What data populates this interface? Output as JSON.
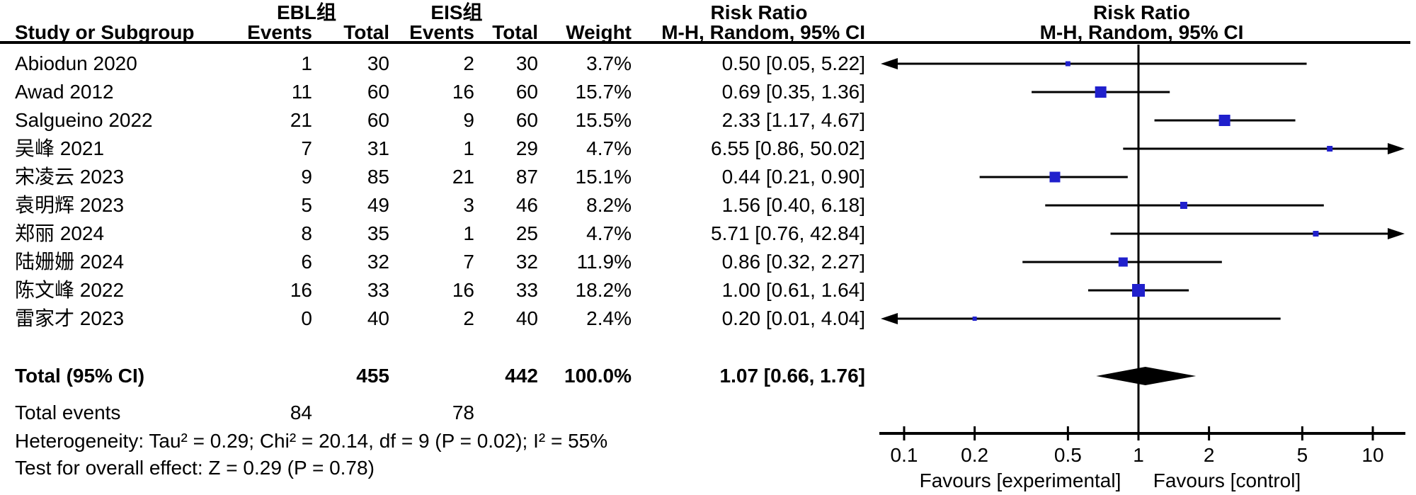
{
  "header": {
    "group1": "EBL组",
    "group2": "EIS组",
    "risk_ratio_text_col": "Risk Ratio",
    "risk_ratio_plot_col": "Risk Ratio",
    "col_study": "Study or Subgroup",
    "col_events1": "Events",
    "col_total1": "Total",
    "col_events2": "Events",
    "col_total2": "Total",
    "col_weight": "Weight",
    "col_mh_text": "M-H, Random, 95% CI",
    "col_mh_plot": "M-H, Random, 95% CI"
  },
  "chart_data": {
    "type": "forest",
    "effect_measure": "Risk Ratio",
    "method": "M-H, Random, 95% CI",
    "x_scale": "log10",
    "xlim": [
      0.1,
      10
    ],
    "x_ticks": [
      0.1,
      0.2,
      0.5,
      1,
      2,
      5,
      10
    ],
    "x_tick_labels": [
      "0.1",
      "0.2",
      "0.5",
      "1",
      "2",
      "5",
      "10"
    ],
    "favours_left": "Favours [experimental]",
    "favours_right": "Favours [control]",
    "studies": [
      {
        "name": "Abiodun 2020",
        "e1": "1",
        "t1": "30",
        "e2": "2",
        "t2": "30",
        "weight": "3.7%",
        "ci_text": "0.50 [0.05, 5.22]",
        "est": 0.5,
        "lo": 0.05,
        "hi": 5.22,
        "weight_pct": 3.7
      },
      {
        "name": "Awad 2012",
        "e1": "11",
        "t1": "60",
        "e2": "16",
        "t2": "60",
        "weight": "15.7%",
        "ci_text": "0.69 [0.35, 1.36]",
        "est": 0.69,
        "lo": 0.35,
        "hi": 1.36,
        "weight_pct": 15.7
      },
      {
        "name": "Salgueino 2022",
        "e1": "21",
        "t1": "60",
        "e2": "9",
        "t2": "60",
        "weight": "15.5%",
        "ci_text": "2.33 [1.17, 4.67]",
        "est": 2.33,
        "lo": 1.17,
        "hi": 4.67,
        "weight_pct": 15.5
      },
      {
        "name": "吴峰 2021",
        "e1": "7",
        "t1": "31",
        "e2": "1",
        "t2": "29",
        "weight": "4.7%",
        "ci_text": "6.55 [0.86, 50.02]",
        "est": 6.55,
        "lo": 0.86,
        "hi": 50.02,
        "weight_pct": 4.7
      },
      {
        "name": "宋凌云 2023",
        "e1": "9",
        "t1": "85",
        "e2": "21",
        "t2": "87",
        "weight": "15.1%",
        "ci_text": "0.44 [0.21, 0.90]",
        "est": 0.44,
        "lo": 0.21,
        "hi": 0.9,
        "weight_pct": 15.1
      },
      {
        "name": "袁明辉 2023",
        "e1": "5",
        "t1": "49",
        "e2": "3",
        "t2": "46",
        "weight": "8.2%",
        "ci_text": "1.56 [0.40, 6.18]",
        "est": 1.56,
        "lo": 0.4,
        "hi": 6.18,
        "weight_pct": 8.2
      },
      {
        "name": "郑丽 2024",
        "e1": "8",
        "t1": "35",
        "e2": "1",
        "t2": "25",
        "weight": "4.7%",
        "ci_text": "5.71 [0.76, 42.84]",
        "est": 5.71,
        "lo": 0.76,
        "hi": 42.84,
        "weight_pct": 4.7
      },
      {
        "name": "陆姗姗 2024",
        "e1": "6",
        "t1": "32",
        "e2": "7",
        "t2": "32",
        "weight": "11.9%",
        "ci_text": "0.86 [0.32, 2.27]",
        "est": 0.86,
        "lo": 0.32,
        "hi": 2.27,
        "weight_pct": 11.9
      },
      {
        "name": "陈文峰 2022",
        "e1": "16",
        "t1": "33",
        "e2": "16",
        "t2": "33",
        "weight": "18.2%",
        "ci_text": "1.00 [0.61, 1.64]",
        "est": 1.0,
        "lo": 0.61,
        "hi": 1.64,
        "weight_pct": 18.2
      },
      {
        "name": "雷家才 2023",
        "e1": "0",
        "t1": "40",
        "e2": "2",
        "t2": "40",
        "weight": "2.4%",
        "ci_text": "0.20 [0.01, 4.04]",
        "est": 0.2,
        "lo": 0.01,
        "hi": 4.04,
        "weight_pct": 2.4
      }
    ],
    "total": {
      "label": "Total (95% CI)",
      "t1": "455",
      "t2": "442",
      "weight": "100.0%",
      "ci_text": "1.07 [0.66, 1.76]",
      "est": 1.07,
      "lo": 0.66,
      "hi": 1.76
    },
    "total_events": {
      "label": "Total events",
      "e1": "84",
      "e2": "78"
    }
  },
  "footer": {
    "heterogeneity": "Heterogeneity: Tau² = 0.29; Chi² = 20.14, df = 9 (P = 0.02); I² = 55%",
    "overall_effect": "Test for overall effect: Z = 0.29 (P = 0.78)"
  },
  "colors": {
    "marker": "#2020cc",
    "ink": "#000000"
  }
}
